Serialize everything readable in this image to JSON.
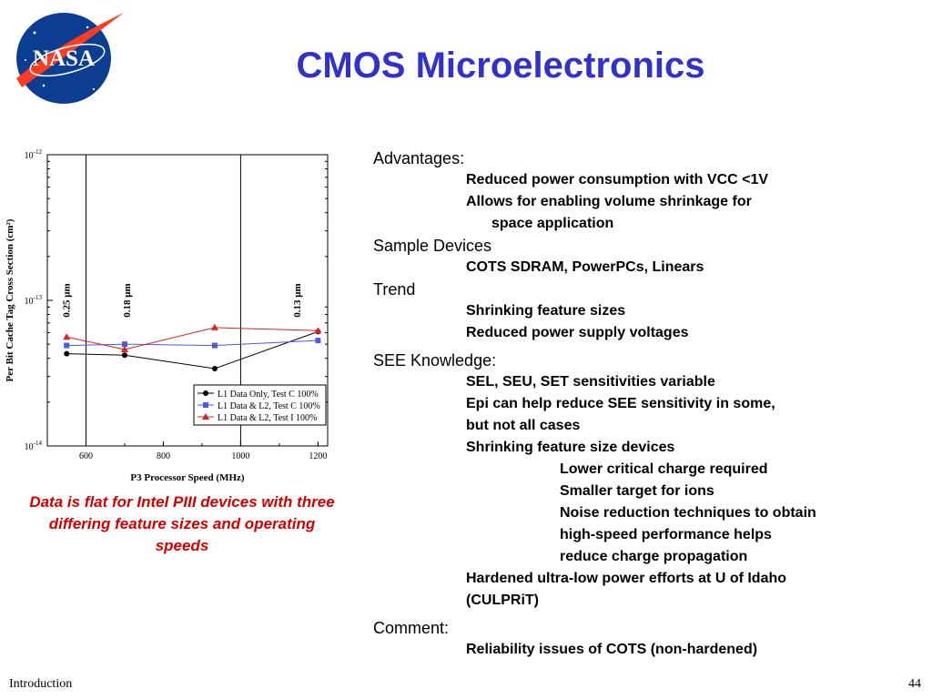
{
  "logo": {
    "text": "NASA",
    "bg": "#0b3d91",
    "swoosh": "#fc3d21"
  },
  "title": "CMOS Microelectronics",
  "chart_data": {
    "type": "line",
    "x_label": "P3 Processor Speed (MHz)",
    "y_label": "Per Bit Cache Tag Cross Section (cm²)",
    "y_scale": "log",
    "x_range": [
      500,
      1225
    ],
    "y_range": [
      1e-14,
      1e-12
    ],
    "x_ticks": [
      "600",
      "800",
      "1000",
      "1200"
    ],
    "y_ticks": [
      {
        "base": "10",
        "exp": "-12",
        "value": 1e-12
      },
      {
        "base": "10",
        "exp": "-13",
        "value": 1e-13
      },
      {
        "base": "10",
        "exp": "-14",
        "value": 1e-14
      }
    ],
    "vlines": [
      {
        "x": 600,
        "label": "0.25 μm"
      },
      {
        "x": 1000,
        "label": "0.13 μm"
      }
    ],
    "feature_labels": [
      {
        "x": 548,
        "label": "0.25 μm"
      },
      {
        "x": 705,
        "label": "0.18 μm"
      },
      {
        "x": 1145,
        "label": "0.13 μm"
      }
    ],
    "series": [
      {
        "name": "L1 Data Only, Test C 100%",
        "color": "#000000",
        "marker": "circle",
        "x": [
          550,
          700,
          933,
          1200
        ],
        "y": [
          4.3e-14,
          4.2e-14,
          3.4e-14,
          6.1e-14
        ]
      },
      {
        "name": "L1 Data & L2, Test C 100%",
        "color": "#4a5ce0",
        "marker": "square",
        "x": [
          550,
          700,
          933,
          1200
        ],
        "y": [
          4.9e-14,
          5e-14,
          4.9e-14,
          5.3e-14
        ]
      },
      {
        "name": "L1 Data & L2, Test I 100%",
        "color": "#e02020",
        "marker": "triangle",
        "x": [
          550,
          700,
          933,
          1200
        ],
        "y": [
          5.6e-14,
          4.6e-14,
          6.5e-14,
          6.2e-14
        ]
      }
    ],
    "legend_position": "lower-right"
  },
  "caption": "Data is flat for Intel PIII devices with three differing feature sizes and operating speeds",
  "content": {
    "advantages": {
      "heading": "Advantages:",
      "items": [
        "Reduced power consumption with VCC <1V",
        "Allows for enabling volume shrinkage for",
        "space application"
      ]
    },
    "samples": {
      "heading": "Sample Devices",
      "items": [
        "COTS SDRAM, PowerPCs, Linears"
      ]
    },
    "trend": {
      "heading": "Trend",
      "items": [
        "Shrinking feature sizes",
        "Reduced power supply voltages"
      ]
    },
    "see": {
      "heading": "SEE Knowledge:",
      "items": [
        "SEL, SEU, SET sensitivities variable",
        "Epi can help reduce SEE sensitivity in some,",
        "but not all cases",
        "Shrinking feature size devices"
      ],
      "subitems": [
        "Lower critical charge required",
        "Smaller target for ions",
        "Noise reduction techniques to obtain",
        "high-speed performance helps",
        "reduce charge propagation"
      ],
      "items2": [
        "Hardened ultra-low power efforts at U of Idaho",
        "(CULPRiT)"
      ]
    },
    "comment": {
      "heading": "Comment:",
      "items": [
        "Reliability issues of COTS (non-hardened)"
      ]
    }
  },
  "footer": {
    "left": "Introduction",
    "right": "44"
  }
}
